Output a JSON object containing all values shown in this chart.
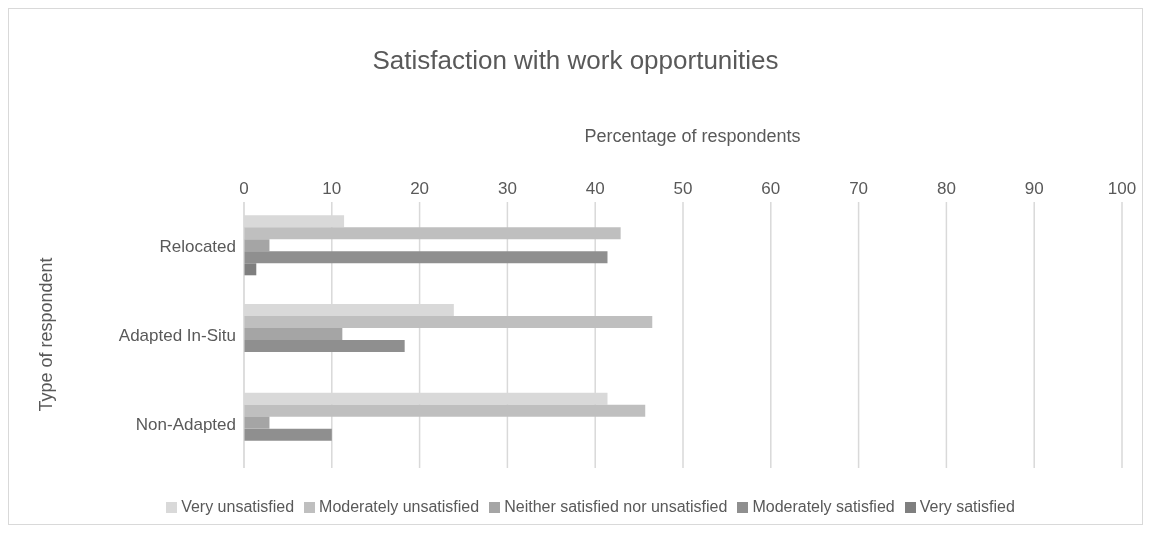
{
  "chart_data": {
    "type": "bar",
    "orientation": "horizontal",
    "title": "Satisfaction with work opportunities",
    "xlabel": "Percentage of respondents",
    "ylabel": "Type of respondent",
    "categories": [
      "Relocated",
      "Adapted In-Situ",
      "Non-Adapted"
    ],
    "series": [
      {
        "name": "Very unsatisfied",
        "color": "#d9d9d9",
        "values": [
          11.4,
          23.9,
          41.4
        ]
      },
      {
        "name": "Moderately unsatisfied",
        "color": "#bfbfbf",
        "values": [
          42.9,
          46.5,
          45.7
        ]
      },
      {
        "name": "Neither satisfied nor unsatisfied",
        "color": "#a5a5a5",
        "values": [
          2.9,
          11.2,
          2.9
        ]
      },
      {
        "name": "Moderately satisfied",
        "color": "#8f8f8f",
        "values": [
          41.4,
          18.3,
          10.0
        ]
      },
      {
        "name": "Very satisfied",
        "color": "#7f7f7f",
        "values": [
          1.4,
          0,
          0
        ]
      }
    ],
    "xlim": [
      0,
      100
    ],
    "xticks": [
      0,
      10,
      20,
      30,
      40,
      50,
      60,
      70,
      80,
      90,
      100
    ],
    "grid": "x",
    "legend": "bottom"
  }
}
